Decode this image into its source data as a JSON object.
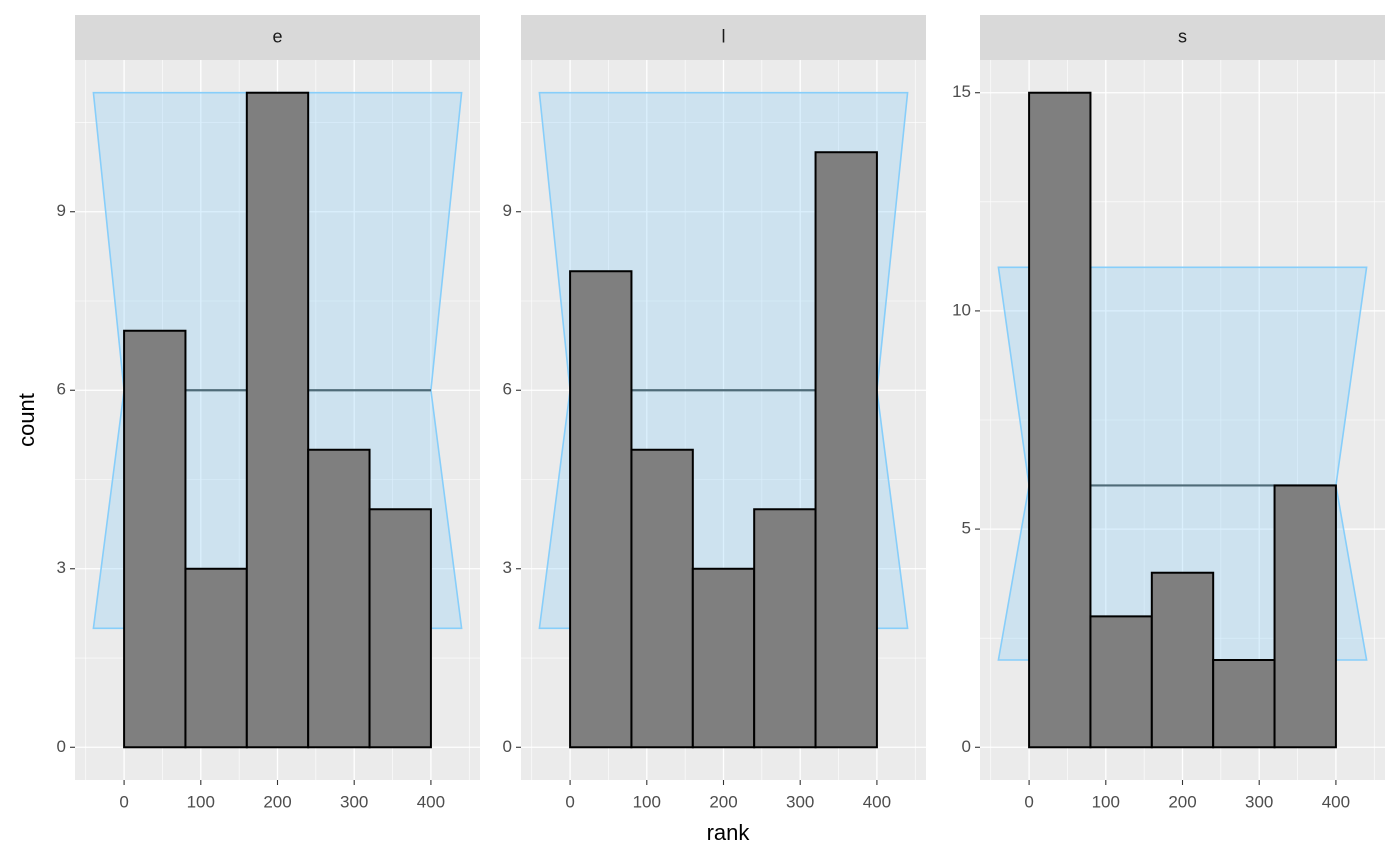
{
  "xlabel": "rank",
  "ylabel": "count",
  "chart_data": [
    {
      "type": "histogram",
      "title": "e",
      "bins": [
        0,
        80,
        160,
        240,
        320,
        400
      ],
      "values": [
        7,
        3,
        11,
        5,
        4
      ],
      "xlim": [
        -64,
        464
      ],
      "xticks": [
        0,
        100,
        200,
        300,
        400
      ],
      "xminor": [
        -50,
        50,
        150,
        250,
        350,
        450
      ],
      "ylim": [
        -0.55,
        11.55
      ],
      "yticks": [
        0,
        3,
        6,
        9
      ],
      "yminor": [
        1.5,
        4.5,
        7.5,
        10.5
      ],
      "band": {
        "x": [
          -40,
          0,
          400,
          440
        ],
        "lower": 2,
        "mean": 6,
        "upper": 11,
        "color": "#87cefa",
        "line_color": "#4f6b78"
      },
      "color": "#7f7f7f",
      "grid": true
    },
    {
      "type": "histogram",
      "title": "l",
      "bins": [
        0,
        80,
        160,
        240,
        320,
        400
      ],
      "values": [
        8,
        5,
        3,
        4,
        10
      ],
      "xlim": [
        -64,
        464
      ],
      "xticks": [
        0,
        100,
        200,
        300,
        400
      ],
      "xminor": [
        -50,
        50,
        150,
        250,
        350,
        450
      ],
      "ylim": [
        -0.55,
        11.55
      ],
      "yticks": [
        0,
        3,
        6,
        9
      ],
      "yminor": [
        1.5,
        4.5,
        7.5,
        10.5
      ],
      "band": {
        "x": [
          -40,
          0,
          400,
          440
        ],
        "lower": 2,
        "mean": 6,
        "upper": 11,
        "color": "#87cefa",
        "line_color": "#4f6b78"
      },
      "color": "#7f7f7f",
      "grid": true
    },
    {
      "type": "histogram",
      "title": "s",
      "bins": [
        0,
        80,
        160,
        240,
        320,
        400
      ],
      "values": [
        15,
        3,
        4,
        2,
        6
      ],
      "xlim": [
        -64,
        464
      ],
      "xticks": [
        0,
        100,
        200,
        300,
        400
      ],
      "xminor": [
        -50,
        50,
        150,
        250,
        350,
        450
      ],
      "ylim": [
        -0.75,
        15.75
      ],
      "yticks": [
        0,
        5,
        10,
        15
      ],
      "yminor": [
        2.5,
        7.5,
        12.5
      ],
      "band": {
        "x": [
          -40,
          0,
          400,
          440
        ],
        "lower": 2,
        "mean": 6,
        "upper": 11,
        "color": "#87cefa",
        "line_color": "#4f6b78"
      },
      "color": "#7f7f7f",
      "grid": true
    }
  ]
}
